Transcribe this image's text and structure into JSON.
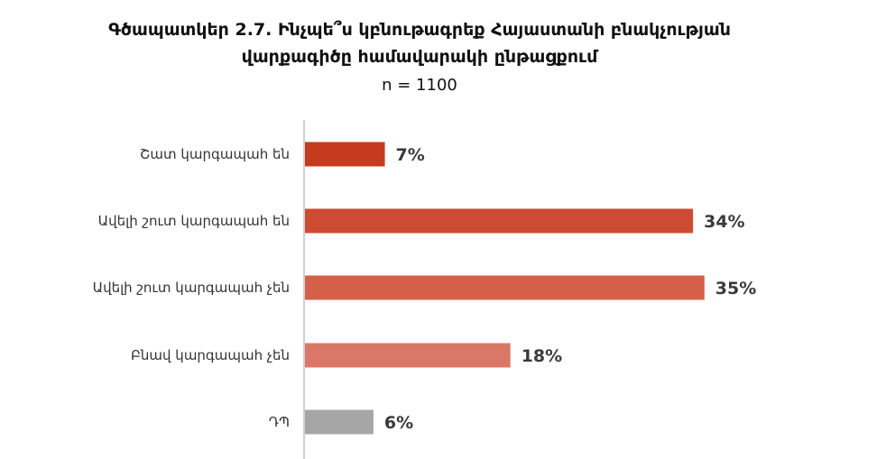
{
  "chart_data": {
    "type": "bar",
    "orientation": "horizontal",
    "title": "Գծապատկեր 2.7. Ինչպե՞ս կբնութագրեք Հայաստանի բնակչության վարքագիծը համավարակի ընթացքում",
    "title_lines": [
      "Գծապատկեր 2.7. Ինչպե՞ս կբնութագրեք Հայաստանի բնակչության",
      "վարքագիծը համավարակի ընթացքում"
    ],
    "subtitle": "n = 1100",
    "categories": [
      "Շատ կարգապահ են",
      "Ավելի շուտ կարգապահ են",
      "Ավելի շուտ կարգապահ չեն",
      "Բնավ կարգապահ չեն",
      "ԴՊ"
    ],
    "values": [
      7,
      34,
      35,
      18,
      6
    ],
    "value_labels": [
      "7%",
      "34%",
      "35%",
      "18%",
      "6%"
    ],
    "colors": [
      "#c63a1e",
      "#cd4a33",
      "#d4604a",
      "#db7766",
      "#a6a6a6"
    ],
    "xlim": [
      0,
      40
    ],
    "grid": false,
    "legend": "none"
  }
}
